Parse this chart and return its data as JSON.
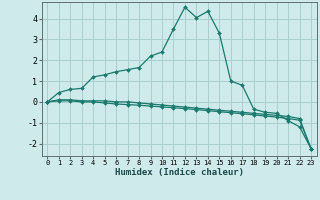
{
  "xlabel": "Humidex (Indice chaleur)",
  "background_color": "#ceeaea",
  "grid_color": "#aacfcf",
  "line_color": "#1a7a6e",
  "x_ticks": [
    0,
    1,
    2,
    3,
    4,
    5,
    6,
    7,
    8,
    9,
    10,
    11,
    12,
    13,
    14,
    15,
    16,
    17,
    18,
    19,
    20,
    21,
    22,
    23
  ],
  "ylim": [
    -2.6,
    4.8
  ],
  "xlim": [
    -0.5,
    23.5
  ],
  "curve1_x": [
    0,
    1,
    2,
    3,
    4,
    5,
    6,
    7,
    8,
    9,
    10,
    11,
    12,
    13,
    14,
    15,
    16,
    17,
    18,
    19,
    20,
    21,
    22,
    23
  ],
  "curve1_y": [
    0.0,
    0.45,
    0.6,
    0.65,
    1.2,
    1.3,
    1.45,
    1.55,
    1.65,
    2.2,
    2.4,
    3.5,
    4.55,
    4.05,
    4.35,
    3.3,
    1.0,
    0.8,
    -0.35,
    -0.5,
    -0.55,
    -0.9,
    -1.2,
    -2.25
  ],
  "curve2_x": [
    0,
    1,
    2,
    3,
    4,
    5,
    6,
    7,
    8,
    9,
    10,
    11,
    12,
    13,
    14,
    15,
    16,
    17,
    18,
    19,
    20,
    21,
    22,
    23
  ],
  "curve2_y": [
    0.0,
    0.1,
    0.1,
    0.05,
    0.05,
    0.05,
    0.0,
    0.0,
    -0.05,
    -0.1,
    -0.15,
    -0.2,
    -0.25,
    -0.3,
    -0.35,
    -0.4,
    -0.45,
    -0.5,
    -0.55,
    -0.6,
    -0.65,
    -0.7,
    -0.8,
    -2.25
  ],
  "curve3_x": [
    0,
    1,
    2,
    3,
    4,
    5,
    6,
    7,
    8,
    9,
    10,
    11,
    12,
    13,
    14,
    15,
    16,
    17,
    18,
    19,
    20,
    21,
    22,
    23
  ],
  "curve3_y": [
    0.0,
    0.05,
    0.05,
    0.0,
    0.0,
    -0.05,
    -0.1,
    -0.13,
    -0.16,
    -0.2,
    -0.24,
    -0.28,
    -0.32,
    -0.37,
    -0.42,
    -0.47,
    -0.52,
    -0.57,
    -0.62,
    -0.68,
    -0.73,
    -0.8,
    -0.88,
    -2.25
  ],
  "yticks": [
    -2,
    -1,
    0,
    1,
    2,
    3,
    4
  ]
}
